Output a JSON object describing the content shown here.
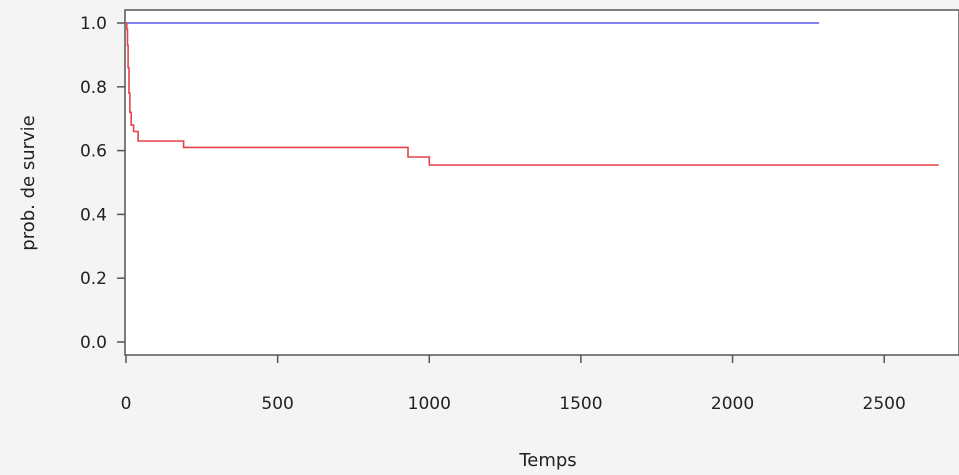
{
  "chart_data": {
    "type": "line",
    "step": true,
    "xlabel": "Temps",
    "ylabel": "prob. de survie",
    "xlim": [
      0,
      2750
    ],
    "ylim": [
      0,
      1
    ],
    "x_ticks": [
      0,
      500,
      1000,
      1500,
      2000,
      2500
    ],
    "x_tick_labels": [
      "0",
      "500",
      "1000",
      "1500",
      "2000",
      "2500"
    ],
    "y_ticks": [
      0,
      0.2,
      0.4,
      0.6,
      0.8,
      1.0
    ],
    "y_tick_labels": [
      "0.0",
      "0.2",
      "0.4",
      "0.6",
      "0.8",
      "1.0"
    ],
    "grid": false,
    "series": [
      {
        "color": "#5a5af0",
        "points": [
          [
            0,
            1.0
          ],
          [
            2285,
            1.0
          ]
        ]
      },
      {
        "color": "#e8414a",
        "points": [
          [
            0,
            1.0
          ],
          [
            3,
            0.98
          ],
          [
            5,
            0.93
          ],
          [
            7,
            0.86
          ],
          [
            10,
            0.78
          ],
          [
            13,
            0.72
          ],
          [
            17,
            0.68
          ],
          [
            25,
            0.66
          ],
          [
            40,
            0.63
          ],
          [
            190,
            0.61
          ],
          [
            930,
            0.58
          ],
          [
            1000,
            0.555
          ],
          [
            2680,
            0.555
          ]
        ]
      }
    ]
  }
}
